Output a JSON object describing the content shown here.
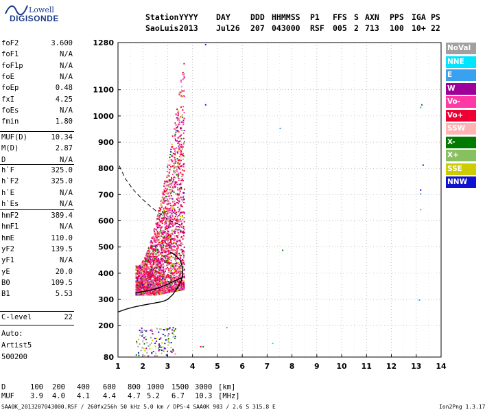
{
  "logo": {
    "line1": "Lowell",
    "line2": "DIGISONDE"
  },
  "header": {
    "row1": [
      "Station",
      "YYYY",
      "DAY",
      "DDD",
      "HHMMSS",
      "P1",
      "FFS",
      "S",
      "AXN",
      "PPS",
      "IGA",
      "PS"
    ],
    "row2": [
      "SaoLuis",
      "2013",
      "Jul26",
      "207",
      "043000",
      "RSF",
      "005",
      "2",
      "713",
      "100",
      "10+",
      "22"
    ]
  },
  "params": [
    {
      "k": "foF2",
      "v": "3.600"
    },
    {
      "k": "foF1",
      "v": "N/A"
    },
    {
      "k": "foF1p",
      "v": "N/A"
    },
    {
      "k": "foE",
      "v": "N/A"
    },
    {
      "k": "foEp",
      "v": "0.48"
    },
    {
      "k": "fxI",
      "v": "4.25"
    },
    {
      "k": "foEs",
      "v": "N/A"
    },
    {
      "k": "fmin",
      "v": "1.80"
    },
    {
      "k": "MUF(D)",
      "v": "10.34"
    },
    {
      "k": "M(D)",
      "v": "2.87"
    },
    {
      "k": "D",
      "v": "N/A"
    },
    {
      "k": "h`F",
      "v": "325.0"
    },
    {
      "k": "h`F2",
      "v": "325.0"
    },
    {
      "k": "h`E",
      "v": "N/A"
    },
    {
      "k": "h`Es",
      "v": "N/A"
    },
    {
      "k": "hmF2",
      "v": "389.4"
    },
    {
      "k": "hmF1",
      "v": "N/A"
    },
    {
      "k": "hmE",
      "v": "110.0"
    },
    {
      "k": "yF2",
      "v": "139.5"
    },
    {
      "k": "yF1",
      "v": "N/A"
    },
    {
      "k": "yE",
      "v": "20.0"
    },
    {
      "k": "B0",
      "v": "109.5"
    },
    {
      "k": "B1",
      "v": "5.53"
    },
    {
      "k": "C-level",
      "v": "22"
    }
  ],
  "auto": [
    "Auto:",
    "Artist5",
    "500200"
  ],
  "legend": [
    {
      "label": "NoVal",
      "color": "#a0a0a0"
    },
    {
      "label": "NNE",
      "color": "#00e5ff"
    },
    {
      "label": "E",
      "color": "#3aa0f0"
    },
    {
      "label": "W",
      "color": "#a0009a"
    },
    {
      "label": "Vo-",
      "color": "#ff3aa6"
    },
    {
      "label": "Vo+",
      "color": "#ee0033"
    },
    {
      "label": "SSW",
      "color": "#ffb4b4"
    },
    {
      "label": "X-",
      "color": "#007a00"
    },
    {
      "label": "X+",
      "color": "#88c060"
    },
    {
      "label": "SSE",
      "color": "#cccc00"
    },
    {
      "label": "NNW",
      "color": "#1010d0"
    }
  ],
  "footer": {
    "d_label": "D",
    "d_values": [
      "100",
      "200",
      "400",
      "600",
      "800",
      "1000",
      "1500",
      "3000",
      "[km]"
    ],
    "muf_label": "MUF",
    "muf_values": [
      "3.9",
      "4.0",
      "4.1",
      "4.4",
      "4.7",
      "5.2",
      "6.7",
      "10.3",
      "[MHz]"
    ],
    "file_info": "SAA0K_2013207043000.RSF / 260fx256h 50 kHz 5.0 km / DPS-4 SAA0K 903 / 2.6 S 315.8 E",
    "version": "Ion2Png 1.3.17"
  },
  "chart_data": {
    "type": "scatter",
    "title": "",
    "xlabel": "",
    "ylabel": "",
    "xlim": [
      1,
      14
    ],
    "ylim": [
      80,
      1280
    ],
    "x_ticks": [
      1,
      2,
      3,
      4,
      5,
      6,
      7,
      8,
      9,
      10,
      11,
      12,
      13,
      14
    ],
    "y_ticks": [
      80,
      200,
      300,
      400,
      500,
      600,
      700,
      800,
      900,
      1000,
      1100,
      1280
    ],
    "grid": true,
    "series": [
      {
        "name": "profile",
        "type": "line",
        "x": [
          1.0,
          1.3,
          1.6,
          2.0,
          2.4,
          2.8,
          3.0,
          3.2,
          3.35,
          3.45,
          3.55,
          3.6,
          3.6,
          3.5,
          3.3,
          3.1
        ],
        "y": [
          252,
          262,
          270,
          278,
          285,
          292,
          300,
          318,
          338,
          355,
          372,
          389,
          420,
          450,
          470,
          480
        ]
      },
      {
        "name": "trace",
        "type": "line",
        "x": [
          1.7,
          1.9,
          2.2,
          2.5,
          2.8,
          3.1,
          3.3,
          3.45,
          3.55,
          3.6
        ],
        "y": [
          325,
          328,
          333,
          340,
          350,
          362,
          372,
          378,
          382,
          385
        ]
      },
      {
        "name": "muf",
        "type": "dashed",
        "x": [
          1.05,
          1.3,
          1.6,
          1.9,
          2.3,
          2.7,
          3.1,
          3.5
        ],
        "y": [
          810,
          760,
          720,
          690,
          655,
          625,
          600,
          585
        ]
      }
    ]
  }
}
